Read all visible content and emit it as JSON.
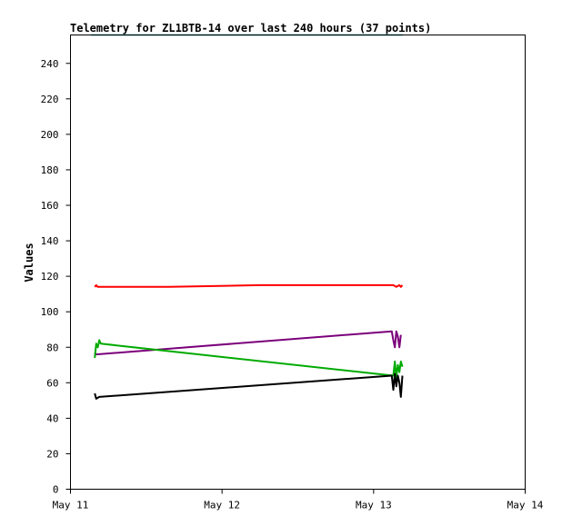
{
  "chart_data": {
    "type": "line",
    "title": "Telemetry for ZL1BTB-14 over last 240 hours (37 points)",
    "xlabel": "",
    "ylabel": "Values",
    "x_unit": "days",
    "xlim": [
      0,
      3
    ],
    "ylim": [
      0,
      256
    ],
    "x_ticks": [
      {
        "value": 0,
        "label": "May 11"
      },
      {
        "value": 1,
        "label": "May 12"
      },
      {
        "value": 2,
        "label": "May 13"
      },
      {
        "value": 3,
        "label": "May 14"
      }
    ],
    "y_ticks": [
      0,
      20,
      40,
      60,
      80,
      100,
      120,
      140,
      160,
      180,
      200,
      220,
      240
    ],
    "grid": false,
    "series": [
      {
        "color": "#ff0000",
        "points": [
          [
            0.16,
            114
          ],
          [
            0.17,
            115
          ],
          [
            0.18,
            114
          ],
          [
            0.65,
            114
          ],
          [
            1.25,
            115
          ],
          [
            2.13,
            115
          ],
          [
            2.15,
            114
          ],
          [
            2.17,
            115
          ],
          [
            2.18,
            114
          ],
          [
            2.19,
            115
          ]
        ]
      },
      {
        "color": "#7b007b",
        "points": [
          [
            0.16,
            77
          ],
          [
            0.17,
            76
          ],
          [
            2.12,
            89
          ],
          [
            2.13,
            84
          ],
          [
            2.14,
            80
          ],
          [
            2.15,
            89
          ],
          [
            2.16,
            86
          ],
          [
            2.17,
            80
          ],
          [
            2.18,
            87
          ]
        ]
      },
      {
        "color": "#00aa00",
        "points": [
          [
            0.16,
            74
          ],
          [
            0.17,
            82
          ],
          [
            0.18,
            80
          ],
          [
            0.19,
            84
          ],
          [
            0.2,
            82
          ],
          [
            2.13,
            64
          ],
          [
            2.14,
            72
          ],
          [
            2.15,
            63
          ],
          [
            2.16,
            70
          ],
          [
            2.17,
            66
          ],
          [
            2.18,
            72
          ],
          [
            2.19,
            69
          ]
        ]
      },
      {
        "color": "#000000",
        "points": [
          [
            0.16,
            54
          ],
          [
            0.17,
            51
          ],
          [
            0.19,
            52
          ],
          [
            2.12,
            64
          ],
          [
            2.13,
            56
          ],
          [
            2.14,
            65
          ],
          [
            2.15,
            58
          ],
          [
            2.16,
            64
          ],
          [
            2.17,
            60
          ],
          [
            2.18,
            52
          ],
          [
            2.19,
            64
          ]
        ]
      }
    ],
    "top_line_color": "#008080"
  }
}
